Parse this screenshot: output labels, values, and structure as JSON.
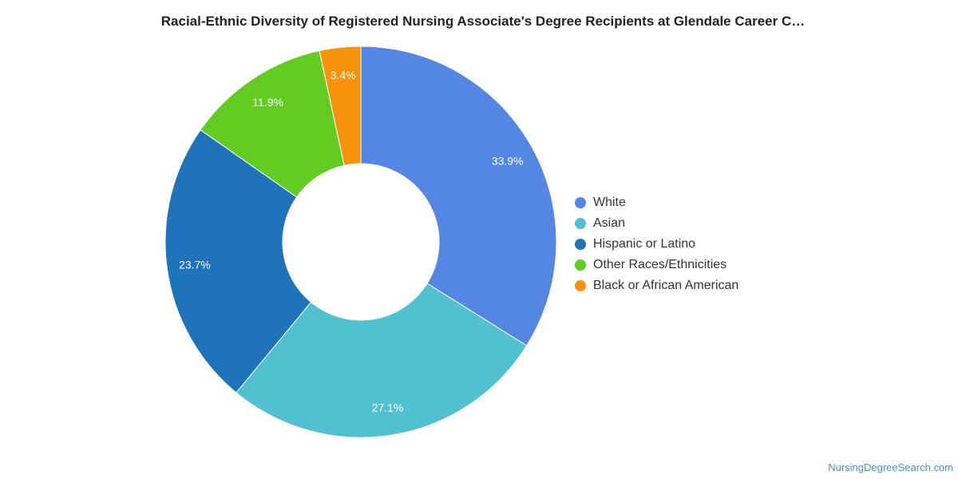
{
  "chart_data": {
    "type": "pie",
    "title": "Racial-Ethnic Diversity of Registered Nursing Associate's Degree Recipients at Glendale Career C…",
    "donut": true,
    "legend_position": "right",
    "slices": [
      {
        "name": "White",
        "value": 33.9,
        "label": "33.9%",
        "color": "#5486e3"
      },
      {
        "name": "Asian",
        "value": 27.1,
        "label": "27.1%",
        "color": "#51c0cf"
      },
      {
        "name": "Hispanic or Latino",
        "value": 23.7,
        "label": "23.7%",
        "color": "#1f73bb"
      },
      {
        "name": "Other Races/Ethnicities",
        "value": 11.9,
        "label": "11.9%",
        "color": "#62cc23"
      },
      {
        "name": "Black or African American",
        "value": 3.4,
        "label": "3.4%",
        "color": "#f7920c"
      }
    ]
  },
  "watermark": "NursingDegreeSearch.com"
}
